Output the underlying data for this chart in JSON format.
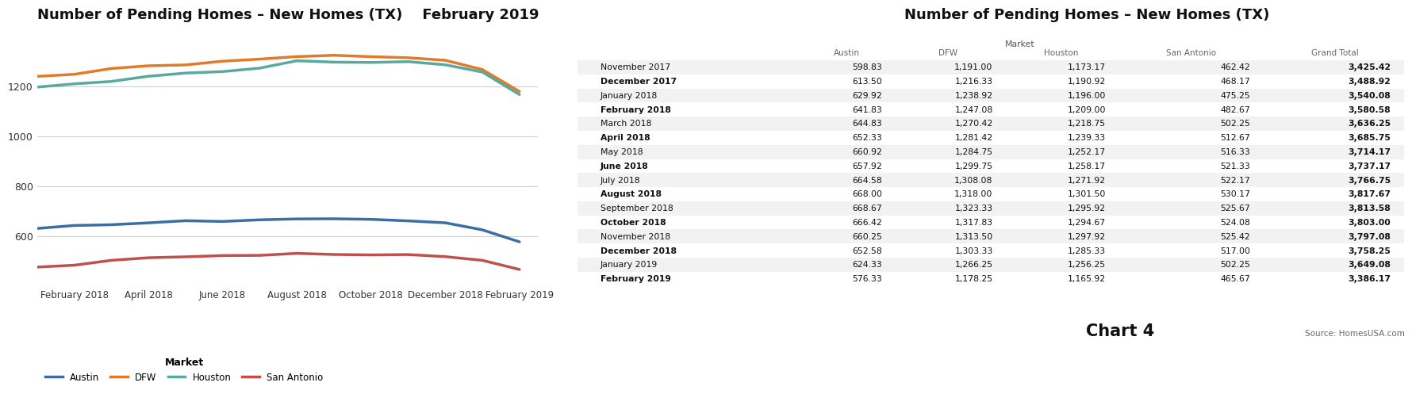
{
  "chart_title": "Number of Pending Homes – New Homes (TX)",
  "subtitle": "February 2019",
  "table_title": "Number of Pending Homes – New Homes (TX)",
  "source": "Source: HomesUSA.com",
  "chart4_label": "Chart 4",
  "months": [
    "November 2017",
    "December 2017",
    "January 2018",
    "February 2018",
    "March 2018",
    "April 2018",
    "May 2018",
    "June 2018",
    "July 2018",
    "August 2018",
    "September 2018",
    "October 2018",
    "November 2018",
    "December 2018",
    "January 2019",
    "February 2019"
  ],
  "austin": [
    598.83,
    613.5,
    629.92,
    641.83,
    644.83,
    652.33,
    660.92,
    657.92,
    664.58,
    668.0,
    668.67,
    666.42,
    660.25,
    652.58,
    624.33,
    576.33
  ],
  "dfw": [
    1191.0,
    1216.33,
    1238.92,
    1247.08,
    1270.42,
    1281.42,
    1284.75,
    1299.75,
    1308.08,
    1318.0,
    1323.33,
    1317.83,
    1313.5,
    1303.33,
    1266.25,
    1178.25
  ],
  "houston": [
    1173.17,
    1190.92,
    1196.0,
    1209.0,
    1218.75,
    1239.33,
    1252.17,
    1258.17,
    1271.92,
    1301.5,
    1295.92,
    1294.67,
    1297.92,
    1285.33,
    1256.25,
    1165.92
  ],
  "san_antonio": [
    462.42,
    468.17,
    475.25,
    482.67,
    502.25,
    512.67,
    516.33,
    521.33,
    522.17,
    530.17,
    525.67,
    524.08,
    525.42,
    517.0,
    502.25,
    465.67
  ],
  "grand_total": [
    3425.42,
    3488.92,
    3540.08,
    3580.58,
    3636.25,
    3685.75,
    3714.17,
    3737.17,
    3766.75,
    3817.67,
    3813.58,
    3803.0,
    3797.08,
    3758.25,
    3649.08,
    3386.17
  ],
  "line_colors": {
    "Austin": "#3b6ea5",
    "DFW": "#e07b2a",
    "Houston": "#5aa9a0",
    "San Antonio": "#c0504d"
  },
  "plot_x_ticks": [
    "February 2018",
    "April 2018",
    "June 2018",
    "August 2018",
    "October 2018",
    "December 2018",
    "February 2019"
  ],
  "plot_x_tick_indices": [
    3,
    5,
    7,
    9,
    11,
    13,
    15
  ],
  "ylim": [
    400,
    1400
  ],
  "yticks": [
    600,
    800,
    1000,
    1200
  ],
  "bg_color": "#ffffff"
}
